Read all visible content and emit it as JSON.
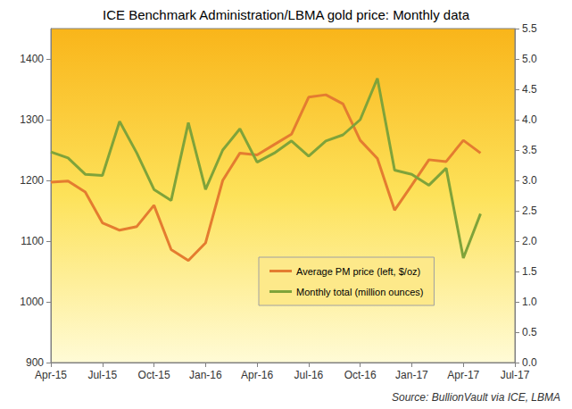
{
  "chart_data": {
    "type": "line",
    "title": "ICE Benchmark Administration/LBMA gold price: Monthly data",
    "annotations": [
      "Source: BullionVault via ICE, LBMA"
    ],
    "categories": [
      "Apr-15",
      null,
      null,
      "Jul-15",
      null,
      null,
      "Oct-15",
      null,
      null,
      "Jan-16",
      null,
      null,
      "Apr-16",
      null,
      null,
      "Jul-16",
      null,
      null,
      "Oct-16",
      null,
      null,
      "Jan-17",
      null,
      null,
      "Apr-17",
      null,
      null,
      "Jul-17"
    ],
    "series": [
      {
        "name": "Average PM price (left, $/oz)",
        "color": "#e47c30",
        "values": [
          1197,
          1199,
          1181,
          1130,
          1118,
          1124,
          1159,
          1086,
          1068,
          1097,
          1200,
          1245,
          1242,
          1259,
          1276,
          1337,
          1341,
          1326,
          1266,
          1236,
          1151,
          1192,
          1234,
          1231,
          1266,
          1245,
          null,
          null
        ]
      },
      {
        "name": "Monthly total (million ounces)",
        "color": "#7fa33a",
        "axis": "y2",
        "values": [
          3.47,
          3.37,
          3.1,
          3.08,
          3.97,
          3.45,
          2.85,
          2.67,
          3.95,
          2.85,
          3.5,
          3.85,
          3.3,
          3.45,
          3.65,
          3.4,
          3.65,
          3.75,
          4.0,
          4.68,
          3.17,
          3.1,
          2.92,
          3.2,
          1.72,
          2.45,
          null,
          null
        ]
      }
    ],
    "ylim": [
      900,
      1450
    ],
    "yticks": [
      900,
      1000,
      1100,
      1200,
      1300,
      1400
    ],
    "y2lim": [
      0,
      5.5
    ],
    "y2ticks": [
      {
        "value": 0,
        "label": "0.0"
      },
      0.5,
      {
        "value": 1,
        "label": "1.0"
      },
      1.5,
      {
        "value": 2,
        "label": "2.0"
      },
      2.5,
      {
        "value": 3,
        "label": "3.0"
      },
      3.5,
      {
        "value": 4,
        "label": "4.0"
      },
      4.5,
      {
        "value": 5,
        "label": "5.0"
      },
      5.5
    ],
    "grid": false,
    "legend": "lower right"
  }
}
